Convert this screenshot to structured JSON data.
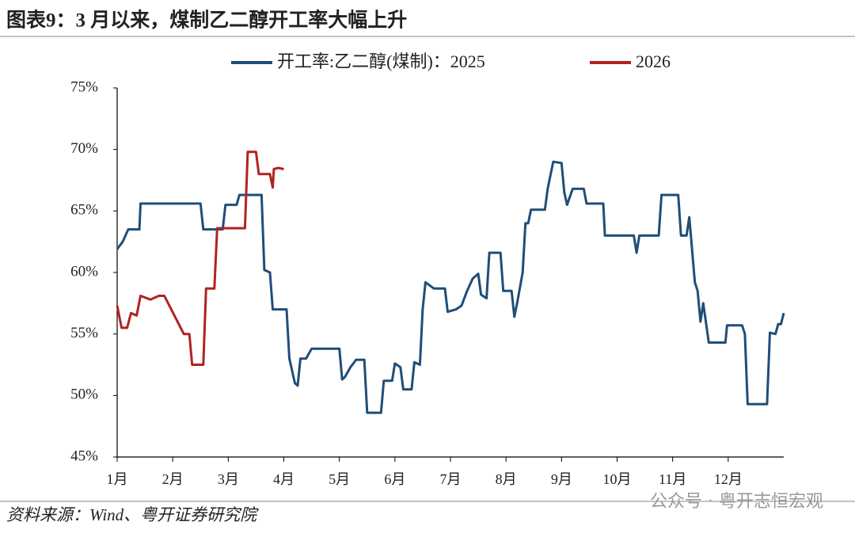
{
  "chart_data": {
    "type": "line",
    "title": "图表9：3 月以来，煤制乙二醇开工率大幅上升",
    "source": "资料来源：Wind、粤开证券研究院",
    "watermark": "公众号 · 粤开志恒宏观",
    "xlim": [
      1,
      13
    ],
    "xticks": [
      {
        "value": 1,
        "label": "1月"
      },
      {
        "value": 2,
        "label": "2月"
      },
      {
        "value": 3,
        "label": "3月"
      },
      {
        "value": 4,
        "label": "4月"
      },
      {
        "value": 5,
        "label": "5月"
      },
      {
        "value": 6,
        "label": "6月"
      },
      {
        "value": 7,
        "label": "7月"
      },
      {
        "value": 8,
        "label": "8月"
      },
      {
        "value": 9,
        "label": "9月"
      },
      {
        "value": 10,
        "label": "10月"
      },
      {
        "value": 11,
        "label": "11月"
      },
      {
        "value": 12,
        "label": "12月"
      }
    ],
    "ylim": [
      45,
      75
    ],
    "yticks": [
      {
        "value": 45,
        "label": "45%"
      },
      {
        "value": 50,
        "label": "50%"
      },
      {
        "value": 55,
        "label": "55%"
      },
      {
        "value": 60,
        "label": "60%"
      },
      {
        "value": 65,
        "label": "65%"
      },
      {
        "value": 70,
        "label": "70%"
      },
      {
        "value": 75,
        "label": "75%"
      }
    ],
    "grid": false,
    "legend": "top",
    "series": [
      {
        "name": "开工率:乙二醇(煤制)：2025",
        "color": "#1f4e79",
        "x": [
          1.0,
          1.1,
          1.15,
          1.2,
          1.4,
          1.42,
          2.5,
          2.55,
          2.9,
          2.95,
          3.15,
          3.2,
          3.6,
          3.65,
          3.75,
          3.8,
          4.05,
          4.1,
          4.2,
          4.25,
          4.3,
          4.4,
          4.5,
          5.0,
          5.05,
          5.1,
          5.2,
          5.3,
          5.45,
          5.5,
          5.75,
          5.8,
          5.95,
          6.0,
          6.1,
          6.15,
          6.3,
          6.35,
          6.45,
          6.5,
          6.55,
          6.7,
          6.9,
          6.95,
          7.1,
          7.2,
          7.3,
          7.4,
          7.5,
          7.55,
          7.65,
          7.7,
          7.9,
          7.95,
          8.1,
          8.15,
          8.2,
          8.3,
          8.35,
          8.4,
          8.45,
          8.7,
          8.75,
          8.85,
          9.0,
          9.05,
          9.1,
          9.2,
          9.4,
          9.45,
          9.75,
          9.78,
          10.3,
          10.35,
          10.4,
          10.75,
          10.8,
          11.1,
          11.15,
          11.25,
          11.3,
          11.4,
          11.45,
          11.5,
          11.55,
          11.65,
          11.95,
          11.98,
          12.25,
          12.3,
          12.35,
          12.7,
          12.75,
          12.85,
          12.9,
          12.95,
          13.0
        ],
        "values": [
          61.9,
          62.5,
          63,
          63.5,
          63.5,
          65.6,
          65.6,
          63.5,
          63.5,
          65.5,
          65.5,
          66.3,
          66.3,
          60.2,
          60,
          57,
          57,
          53,
          51,
          50.8,
          53,
          53,
          53.8,
          53.8,
          51.3,
          51.5,
          52.3,
          52.9,
          52.9,
          48.6,
          48.6,
          51.2,
          51.2,
          52.6,
          52.3,
          50.5,
          50.5,
          52.7,
          52.5,
          57,
          59.2,
          58.7,
          58.7,
          56.8,
          57,
          57.3,
          58.5,
          59.5,
          59.9,
          58.2,
          57.9,
          61.6,
          61.6,
          58.5,
          58.5,
          56.4,
          57.5,
          60,
          64,
          64,
          65.1,
          65.1,
          66.8,
          69,
          68.9,
          66.5,
          65.5,
          66.8,
          66.8,
          65.6,
          65.6,
          63,
          63,
          61.6,
          63,
          63,
          66.3,
          66.3,
          63,
          63,
          64.5,
          59.2,
          58.5,
          56,
          57.5,
          54.3,
          54.3,
          55.7,
          55.7,
          55,
          49.3,
          49.3,
          55.1,
          55,
          55.8,
          55.8,
          56.7
        ]
      },
      {
        "name": "2026",
        "color": "#b22222",
        "x": [
          1.0,
          1.08,
          1.18,
          1.25,
          1.35,
          1.42,
          1.6,
          1.75,
          1.85,
          2.2,
          2.3,
          2.35,
          2.55,
          2.6,
          2.75,
          2.8,
          3.3,
          3.35,
          3.5,
          3.55,
          3.75,
          3.8,
          3.82,
          3.9,
          4.0
        ],
        "values": [
          57.3,
          55.5,
          55.5,
          56.7,
          56.5,
          58.1,
          57.8,
          58.1,
          58.1,
          55,
          55,
          52.5,
          52.5,
          58.7,
          58.7,
          63.6,
          63.6,
          69.8,
          69.8,
          68,
          68,
          66.9,
          68.4,
          68.5,
          68.4
        ]
      }
    ]
  }
}
